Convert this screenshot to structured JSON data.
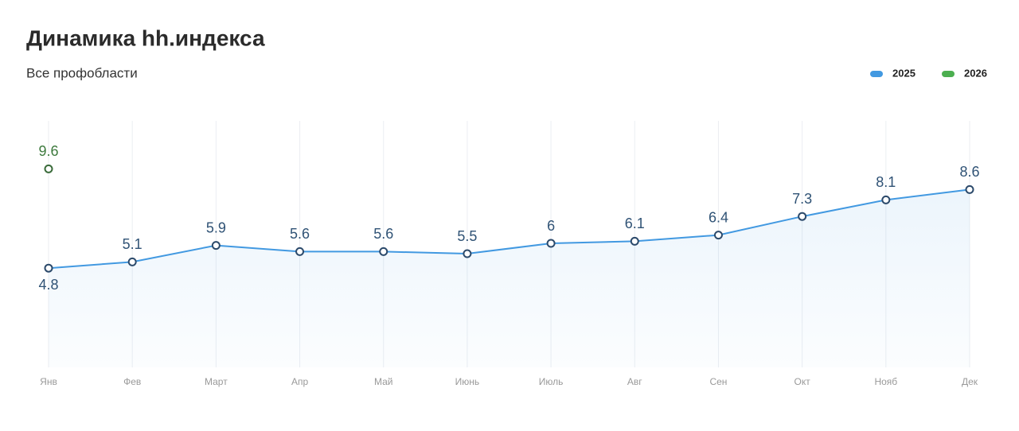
{
  "chart_data": {
    "type": "line",
    "title": "Динамика hh.индекса",
    "subtitle": "Все профобласти",
    "categories": [
      "Янв",
      "Фев",
      "Март",
      "Апр",
      "Май",
      "Июнь",
      "Июль",
      "Авг",
      "Сен",
      "Окт",
      "Нояб",
      "Дек"
    ],
    "series": [
      {
        "name": "2025",
        "color": "#4299e1",
        "values": [
          4.8,
          5.1,
          5.9,
          5.6,
          5.6,
          5.5,
          6,
          6.1,
          6.4,
          7.3,
          8.1,
          8.6
        ]
      },
      {
        "name": "2026",
        "color": "#4caf50",
        "values": [
          9.6,
          null,
          null,
          null,
          null,
          null,
          null,
          null,
          null,
          null,
          null,
          null
        ]
      }
    ],
    "ylim": [
      0,
      12
    ],
    "grid": true,
    "legend": "top-right"
  }
}
